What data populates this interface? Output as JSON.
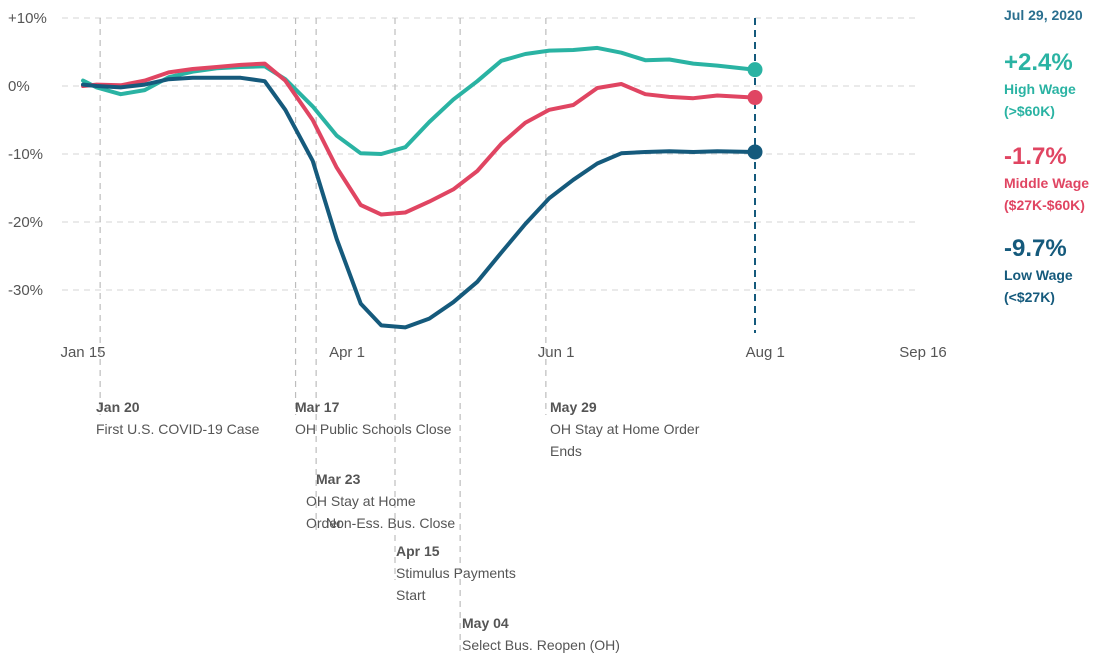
{
  "chart_data": {
    "type": "line",
    "x_axis": {
      "type": "date",
      "range": [
        "2020-01-15",
        "2020-09-16"
      ],
      "ticks": [
        {
          "date": "2020-01-15",
          "label": "Jan 15"
        },
        {
          "date": "2020-04-01",
          "label": "Apr 1"
        },
        {
          "date": "2020-06-01",
          "label": "Jun 1"
        },
        {
          "date": "2020-08-01",
          "label": "Aug 1"
        },
        {
          "date": "2020-09-16",
          "label": "Sep 16"
        }
      ]
    },
    "y_axis": {
      "range": [
        -35,
        10
      ],
      "ticks": [
        {
          "value": 10,
          "label": "+10%"
        },
        {
          "value": 0,
          "label": "0%"
        },
        {
          "value": -10,
          "label": "-10%"
        },
        {
          "value": -20,
          "label": "-20%"
        },
        {
          "value": -30,
          "label": "-30%"
        }
      ]
    },
    "grid": true,
    "legend": "right",
    "current_date": "2020-07-29",
    "current_date_label": "Jul 29, 2020",
    "series": [
      {
        "key": "high",
        "color": "#2ab3a3",
        "value_label": "+2.4%",
        "label_line1": "High Wage",
        "label_line2": "(>$60K)",
        "points": [
          [
            "2020-01-15",
            0.8
          ],
          [
            "2020-01-19",
            -0.2
          ],
          [
            "2020-01-26",
            -1.2
          ],
          [
            "2020-02-02",
            -0.6
          ],
          [
            "2020-02-09",
            1.3
          ],
          [
            "2020-02-16",
            2.1
          ],
          [
            "2020-02-23",
            2.6
          ],
          [
            "2020-03-01",
            2.8
          ],
          [
            "2020-03-08",
            2.9
          ],
          [
            "2020-03-14",
            1.0
          ],
          [
            "2020-03-22",
            -3.0
          ],
          [
            "2020-03-29",
            -7.3
          ],
          [
            "2020-04-05",
            -9.9
          ],
          [
            "2020-04-11",
            -10.0
          ],
          [
            "2020-04-18",
            -9.0
          ],
          [
            "2020-04-25",
            -5.3
          ],
          [
            "2020-05-02",
            -2.0
          ],
          [
            "2020-05-09",
            0.7
          ],
          [
            "2020-05-16",
            3.7
          ],
          [
            "2020-05-23",
            4.7
          ],
          [
            "2020-05-30",
            5.2
          ],
          [
            "2020-06-06",
            5.3
          ],
          [
            "2020-06-13",
            5.6
          ],
          [
            "2020-06-20",
            4.9
          ],
          [
            "2020-06-27",
            3.8
          ],
          [
            "2020-07-04",
            3.9
          ],
          [
            "2020-07-11",
            3.3
          ],
          [
            "2020-07-18",
            3.0
          ],
          [
            "2020-07-29",
            2.4
          ]
        ]
      },
      {
        "key": "middle",
        "color": "#e04562",
        "value_label": "-1.7%",
        "label_line1": "Middle Wage",
        "label_line2": "($27K-$60K)",
        "points": [
          [
            "2020-01-15",
            0.0
          ],
          [
            "2020-01-19",
            0.2
          ],
          [
            "2020-01-26",
            0.1
          ],
          [
            "2020-02-02",
            0.8
          ],
          [
            "2020-02-09",
            2.0
          ],
          [
            "2020-02-16",
            2.5
          ],
          [
            "2020-02-23",
            2.8
          ],
          [
            "2020-03-01",
            3.1
          ],
          [
            "2020-03-08",
            3.3
          ],
          [
            "2020-03-14",
            0.8
          ],
          [
            "2020-03-22",
            -5.0
          ],
          [
            "2020-03-29",
            -12.0
          ],
          [
            "2020-04-05",
            -17.5
          ],
          [
            "2020-04-11",
            -18.9
          ],
          [
            "2020-04-18",
            -18.6
          ],
          [
            "2020-04-25",
            -17.0
          ],
          [
            "2020-05-02",
            -15.2
          ],
          [
            "2020-05-09",
            -12.5
          ],
          [
            "2020-05-16",
            -8.5
          ],
          [
            "2020-05-23",
            -5.4
          ],
          [
            "2020-05-30",
            -3.5
          ],
          [
            "2020-06-06",
            -2.8
          ],
          [
            "2020-06-13",
            -0.3
          ],
          [
            "2020-06-20",
            0.3
          ],
          [
            "2020-06-27",
            -1.2
          ],
          [
            "2020-07-04",
            -1.6
          ],
          [
            "2020-07-11",
            -1.8
          ],
          [
            "2020-07-18",
            -1.4
          ],
          [
            "2020-07-29",
            -1.7
          ]
        ]
      },
      {
        "key": "low",
        "color": "#155a7c",
        "value_label": "-9.7%",
        "label_line1": "Low Wage",
        "label_line2": "(<$27K)",
        "points": [
          [
            "2020-01-15",
            0.2
          ],
          [
            "2020-01-19",
            0.0
          ],
          [
            "2020-01-26",
            -0.2
          ],
          [
            "2020-02-02",
            0.2
          ],
          [
            "2020-02-09",
            1.0
          ],
          [
            "2020-02-16",
            1.2
          ],
          [
            "2020-02-23",
            1.2
          ],
          [
            "2020-03-01",
            1.2
          ],
          [
            "2020-03-08",
            0.7
          ],
          [
            "2020-03-14",
            -3.5
          ],
          [
            "2020-03-22",
            -11.0
          ],
          [
            "2020-03-29",
            -22.5
          ],
          [
            "2020-04-05",
            -32.0
          ],
          [
            "2020-04-11",
            -35.2
          ],
          [
            "2020-04-18",
            -35.5
          ],
          [
            "2020-04-25",
            -34.2
          ],
          [
            "2020-05-02",
            -31.8
          ],
          [
            "2020-05-09",
            -28.8
          ],
          [
            "2020-05-16",
            -24.5
          ],
          [
            "2020-05-23",
            -20.3
          ],
          [
            "2020-05-30",
            -16.5
          ],
          [
            "2020-06-06",
            -13.8
          ],
          [
            "2020-06-13",
            -11.4
          ],
          [
            "2020-06-20",
            -9.9
          ],
          [
            "2020-06-27",
            -9.7
          ],
          [
            "2020-07-04",
            -9.6
          ],
          [
            "2020-07-11",
            -9.7
          ],
          [
            "2020-07-18",
            -9.6
          ],
          [
            "2020-07-29",
            -9.7
          ]
        ]
      }
    ],
    "annotations": [
      {
        "date": "2020-01-20",
        "date_label": "Jan 20",
        "lines": [
          "First U.S. COVID-19 Case"
        ]
      },
      {
        "date": "2020-03-17",
        "date_label": "Mar 17",
        "lines": [
          "OH Public Schools Close"
        ]
      },
      {
        "date": "2020-03-23",
        "date_label": "Mar 23",
        "lines": [
          "OH Stay at Home",
          "Order"
        ],
        "overlap_line": "Non-Ess. Bus. Close"
      },
      {
        "date": "2020-04-15",
        "date_label": "Apr 15",
        "lines": [
          "Stimulus Payments",
          "Start"
        ]
      },
      {
        "date": "2020-05-04",
        "date_label": "May 04",
        "lines": [
          "Select Bus. Reopen (OH)"
        ]
      },
      {
        "date": "2020-05-29",
        "date_label": "May 29",
        "lines": [
          "OH Stay at Home Order",
          "Ends"
        ]
      }
    ]
  }
}
